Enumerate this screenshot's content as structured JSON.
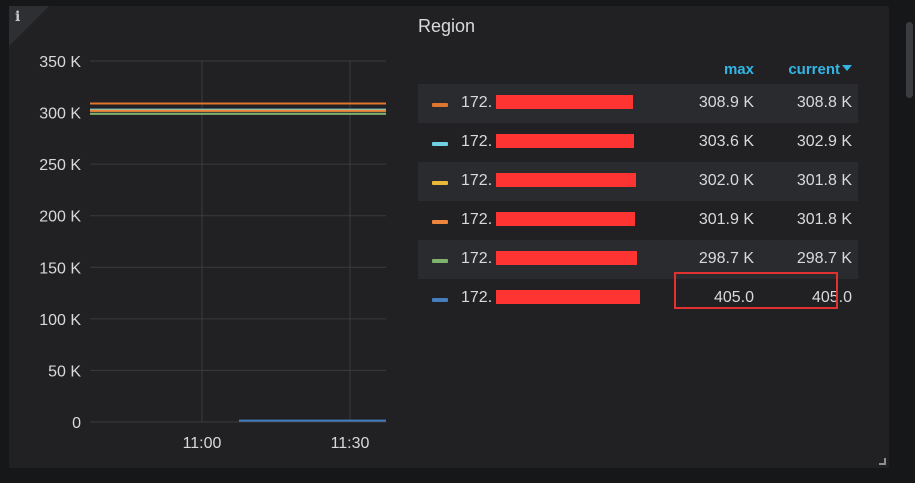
{
  "panel": {
    "info_icon": "i",
    "legend_title": "Region",
    "columns": {
      "max": "max",
      "current": "current"
    }
  },
  "chart_data": {
    "type": "line",
    "y_ticks": [
      "350 K",
      "300 K",
      "250 K",
      "200 K",
      "150 K",
      "100 K",
      "50 K",
      "0"
    ],
    "y_tick_values": [
      350000,
      300000,
      250000,
      200000,
      150000,
      100000,
      50000,
      0
    ],
    "ylim": [
      0,
      350000
    ],
    "x_ticks": [
      "11:00",
      "11:30"
    ],
    "grid": true,
    "legend_placement": "right",
    "series": [
      {
        "name": "172.",
        "color": "#e0752d",
        "values": [
          308800,
          308800,
          308800,
          308800,
          308800
        ]
      },
      {
        "name": "172.",
        "color": "#6ed0e0",
        "values": [
          302900,
          302900,
          302900,
          302900,
          302900
        ]
      },
      {
        "name": "172.",
        "color": "#eab839",
        "values": [
          301800,
          301800,
          301800,
          301800,
          301800
        ]
      },
      {
        "name": "172.",
        "color": "#ef843c",
        "values": [
          301800,
          301800,
          301800,
          301800,
          301800
        ]
      },
      {
        "name": "172.",
        "color": "#7eb26d",
        "values": [
          298700,
          298700,
          298700,
          298700,
          298700
        ]
      },
      {
        "name": "172.",
        "color": "#447ebc",
        "values": [
          405,
          405,
          405
        ]
      }
    ]
  },
  "legend": {
    "rows": [
      {
        "name": "172.",
        "color": "#e0752d",
        "max": "308.9 K",
        "current": "308.8 K"
      },
      {
        "name": "172.",
        "color": "#6ed0e0",
        "max": "303.6 K",
        "current": "302.9 K"
      },
      {
        "name": "172.",
        "color": "#eab839",
        "max": "302.0 K",
        "current": "301.8 K"
      },
      {
        "name": "172.",
        "color": "#ef843c",
        "max": "301.9 K",
        "current": "301.8 K"
      },
      {
        "name": "172.",
        "color": "#7eb26d",
        "max": "298.7 K",
        "current": "298.7 K"
      },
      {
        "name": "172.",
        "color": "#447ebc",
        "max": "405.0",
        "current": "405.0"
      }
    ]
  }
}
